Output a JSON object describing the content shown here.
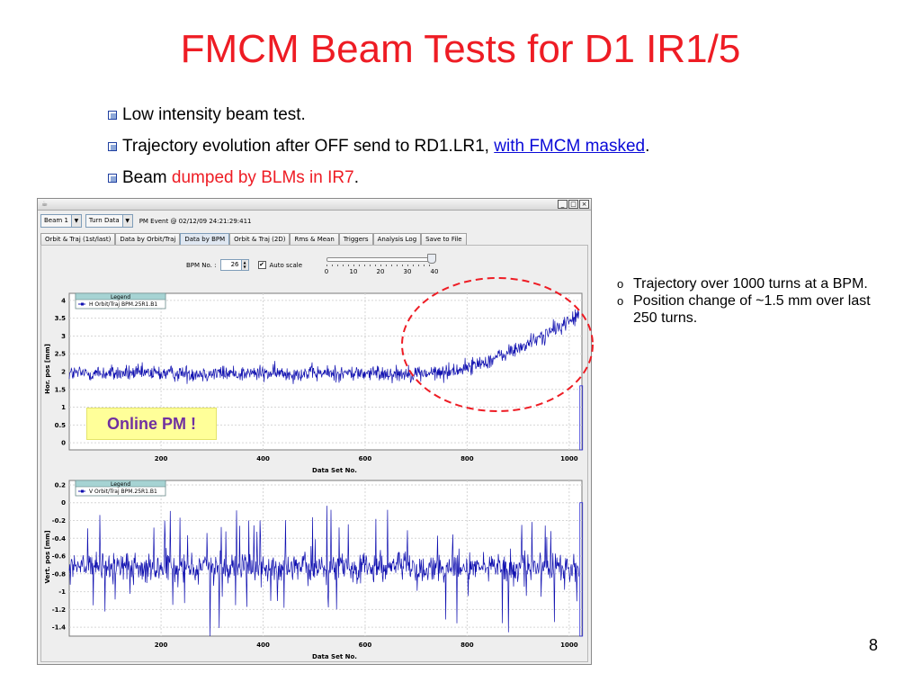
{
  "slide": {
    "title": "FMCM Beam Tests for D1 IR1/5",
    "bullets": [
      {
        "text": "Low intensity beam test."
      },
      {
        "text": "Trajectory evolution after OFF send to RD1.LR1, ",
        "link": "with FMCM masked",
        "tail": "."
      },
      {
        "text": "Beam ",
        "red": "dumped by BLMs in IR7",
        "tail": "."
      }
    ],
    "right_bullets": [
      "Trajectory over 1000 turns at a BPM.",
      "Position change of ~1.5 mm over last 250 turns."
    ],
    "annotation": "Online PM !",
    "page_number": "8",
    "colors": {
      "title": "#ee1c24",
      "link": "#0a0ad8",
      "annotation_bg": "#ffff99",
      "annotation_text": "#7030a0",
      "ellipse": "#ee1c24"
    }
  },
  "app": {
    "toolbar": {
      "beam_select": "Beam 1",
      "data_select": "Turn Data",
      "event_label": "PM Event @ 02/12/09 24:21:29:411"
    },
    "tabs": [
      "Orbit & Traj (1st/last)",
      "Data by Orbit/Traj",
      "Data by BPM",
      "Orbit & Traj (2D)",
      "Rms & Mean",
      "Triggers",
      "Analysis Log",
      "Save to File"
    ],
    "active_tab": "Data by BPM",
    "bpm_label": "BPM No. :",
    "bpm_value": "26",
    "auto_scale_label": "Auto scale",
    "auto_scale_checked": true,
    "slider": {
      "labels": [
        "0",
        "10",
        "20",
        "30",
        "40"
      ],
      "value": 40,
      "min": 0,
      "max": 40
    },
    "window_buttons": [
      "_",
      "□",
      "×"
    ]
  },
  "chart_data": [
    {
      "type": "line",
      "ylabel": "Hor. pos [mm]",
      "xlabel": "Data Set No.",
      "xlim": [
        20,
        1025
      ],
      "ylim": [
        -0.2,
        4.2
      ],
      "xticks": [
        "200",
        "400",
        "600",
        "800",
        "1000"
      ],
      "yticks": [
        "0",
        "0.5",
        "1",
        "1.5",
        "2",
        "2.5",
        "3",
        "3.5",
        "4"
      ],
      "legend_title": "Legend",
      "series": [
        {
          "name": "H Orbit/Traj BPM.25R1.B1",
          "color": "#1010b0"
        }
      ],
      "grid": true
    },
    {
      "type": "line",
      "ylabel": "Vert. pos [mm]",
      "xlabel": "Data Set No.",
      "xlim": [
        20,
        1025
      ],
      "ylim": [
        -1.5,
        0.25
      ],
      "xticks": [
        "200",
        "400",
        "600",
        "800",
        "1000"
      ],
      "yticks": [
        "0.2",
        "0",
        "-0.2",
        "-0.4",
        "-0.6",
        "-0.8",
        "-1",
        "-1.2",
        "-1.4"
      ],
      "legend_title": "Legend",
      "series": [
        {
          "name": "V Orbit/Traj BPM.25R1.B1",
          "color": "#1010b0"
        }
      ],
      "grid": true
    }
  ]
}
